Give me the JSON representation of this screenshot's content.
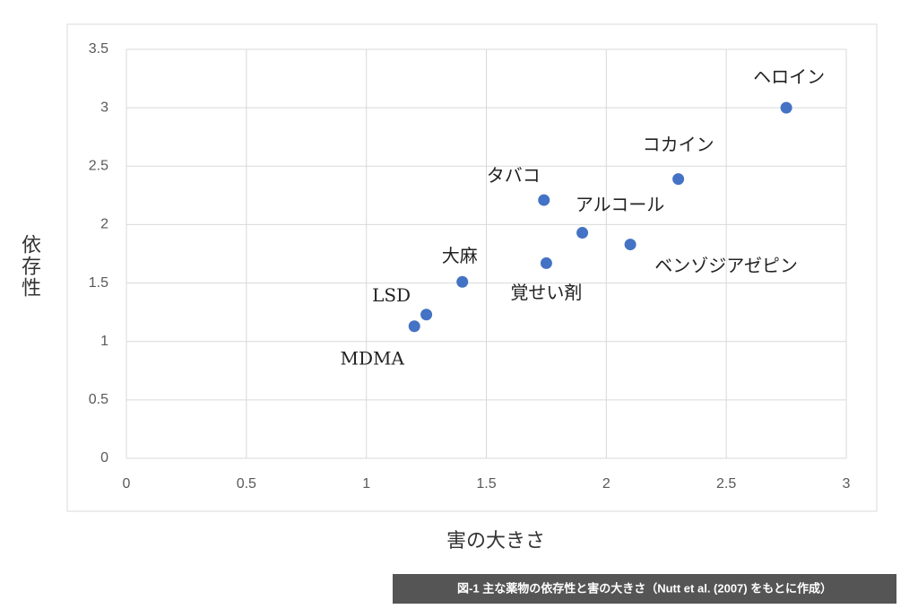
{
  "chart_data": {
    "type": "scatter",
    "x_label": "害の大きさ",
    "y_label": "依存性",
    "caption": "図-1 主な薬物の依存性と害の大きさ（Nutt et al. (2007) をもとに作成）",
    "point_labels": [
      "ヘロイン",
      "コカイン",
      "タバコ",
      "アルコール",
      "ベンゾジアゼピン",
      "覚せい剤",
      "大麻",
      "LSD",
      "MDMA"
    ],
    "x": [
      2.75,
      2.3,
      1.74,
      1.9,
      2.1,
      1.75,
      1.4,
      1.25,
      1.2
    ],
    "values": [
      3.0,
      2.39,
      2.21,
      1.93,
      1.83,
      1.67,
      1.51,
      1.23,
      1.13
    ],
    "color": "#4472c4",
    "xlim": [
      0,
      3
    ],
    "xticks": [
      0,
      0.5,
      1,
      1.5,
      2,
      2.5,
      3
    ],
    "ylim": [
      0,
      3.5
    ],
    "yticks": [
      0,
      0.5,
      1,
      1.5,
      2,
      2.5,
      3,
      3.5
    ],
    "grid": true
  }
}
